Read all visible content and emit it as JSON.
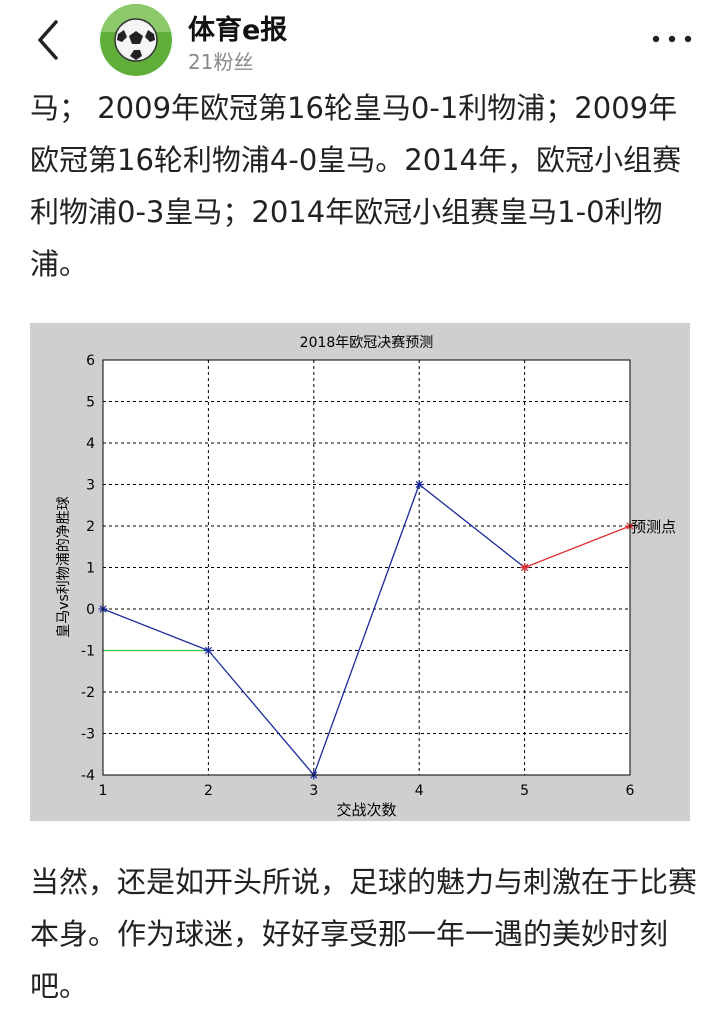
{
  "header": {
    "account_name": "体育e报",
    "fans": "21粉丝",
    "back_icon": "chevron-left-icon",
    "more_icon": "more-dots-icon",
    "avatar_icon": "soccer-ball-icon"
  },
  "article": {
    "paragraph_1": "马； 2009年欧冠第16轮皇马0-1利物浦；2009年欧冠第16轮利物浦4-0皇马。2014年，欧冠小组赛利物浦0-3皇马；2014年欧冠小组赛皇马1-0利物浦。",
    "paragraph_2": "当然，还是如开头所说，足球的魅力与刺激在于比赛本身。作为球迷，好好享受那一年一遇的美妙时刻吧。"
  },
  "chart_data": {
    "type": "line",
    "title": "2018年欧冠决赛预测",
    "xlabel": "交战次数",
    "ylabel": "皇马vs利物浦的净胜球",
    "xlim": [
      1,
      6
    ],
    "ylim": [
      -4,
      6
    ],
    "xticks": [
      "1",
      "2",
      "3",
      "4",
      "5",
      "6"
    ],
    "yticks": [
      "-4",
      "-3",
      "-2",
      "-1",
      "0",
      "1",
      "2",
      "3",
      "4",
      "5",
      "6"
    ],
    "grid": true,
    "series": [
      {
        "x": [
          1,
          2,
          3,
          4,
          5
        ],
        "y": [
          0,
          -1,
          -4,
          3,
          1
        ],
        "color": "#1a2a9a",
        "marker": "*"
      },
      {
        "x": [
          5,
          6
        ],
        "y": [
          1,
          2
        ],
        "color": "#e03030",
        "marker": "*"
      },
      {
        "x": [
          1,
          2
        ],
        "y": [
          -1,
          -1
        ],
        "color": "#33cc33"
      }
    ],
    "annotation": {
      "x": 6,
      "y": 2,
      "text": "预测点"
    },
    "colors": {
      "figure_bg": "#cfcfcf",
      "axes_bg": "#ffffff"
    }
  }
}
